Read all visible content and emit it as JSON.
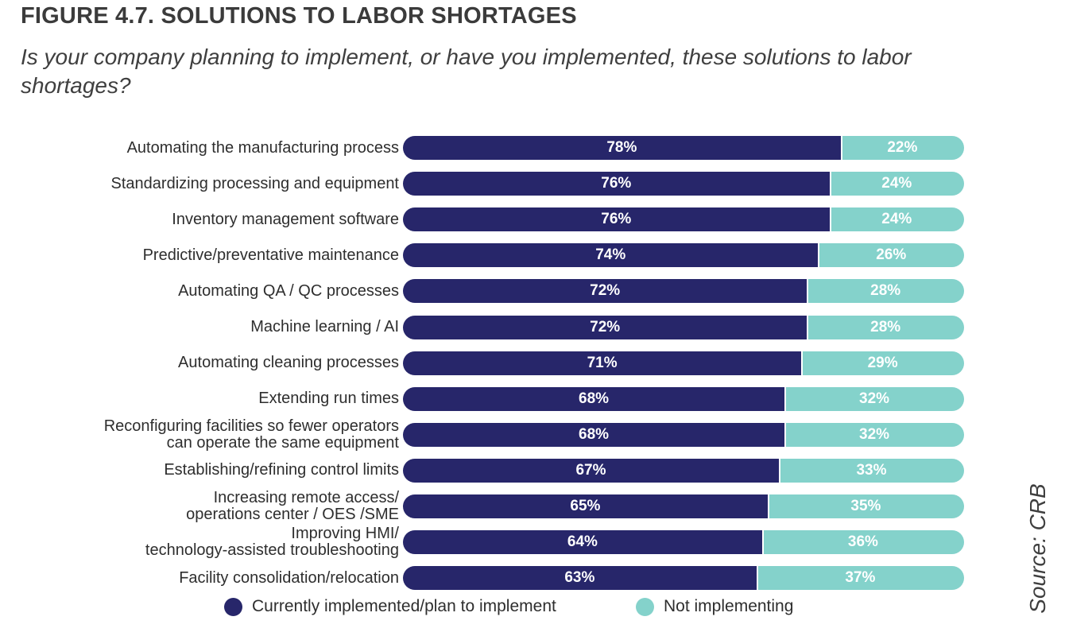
{
  "figure": {
    "title": "FIGURE 4.7. SOLUTIONS TO LABOR SHORTAGES",
    "subtitle": "Is your company planning to implement, or have you implemented, these solutions to labor shortages?",
    "source": "Source: CRB"
  },
  "colors": {
    "implemented": "#27266a",
    "not_implementing": "#84d2cb",
    "label_text": "#2e2e2e",
    "title_text": "#3b3b3b"
  },
  "chart_data": {
    "type": "bar",
    "orientation": "horizontal",
    "stacked": true,
    "title": "FIGURE 4.7. SOLUTIONS TO LABOR SHORTAGES",
    "subtitle": "Is your company planning to implement, or have you implemented, these solutions to labor shortages?",
    "value_unit": "%",
    "xlim": [
      0,
      100
    ],
    "legend_position": "bottom",
    "categories": [
      [
        "Automating the manufacturing process"
      ],
      [
        "Standardizing processing and equipment"
      ],
      [
        "Inventory management software"
      ],
      [
        "Predictive/preventative maintenance"
      ],
      [
        "Automating QA / QC processes"
      ],
      [
        "Machine learning / AI"
      ],
      [
        "Automating cleaning processes"
      ],
      [
        "Extending run times"
      ],
      [
        "Reconfiguring facilities so fewer operators",
        "can operate the same equipment"
      ],
      [
        "Establishing/refining control limits"
      ],
      [
        "Increasing remote access/",
        "operations center / OES /SME"
      ],
      [
        "Improving HMI/",
        "technology-assisted troubleshooting"
      ],
      [
        "Facility consolidation/relocation"
      ]
    ],
    "series": [
      {
        "name": "Currently implemented/plan to implement",
        "values": [
          78,
          76,
          76,
          74,
          72,
          72,
          71,
          68,
          68,
          67,
          65,
          64,
          63
        ],
        "labels": [
          "78%",
          "76%",
          "76%",
          "74%",
          "72%",
          "72%",
          "71%",
          "68%",
          "68%",
          "67%",
          "65%",
          "64%",
          "63%"
        ]
      },
      {
        "name": "Not implementing",
        "values": [
          22,
          24,
          24,
          26,
          28,
          28,
          29,
          32,
          32,
          33,
          35,
          36,
          37
        ],
        "labels": [
          "22%",
          "24%",
          "24%",
          "26%",
          "28%",
          "28%",
          "29%",
          "32%",
          "32%",
          "33%",
          "35%",
          "36%",
          "37%"
        ]
      }
    ]
  }
}
